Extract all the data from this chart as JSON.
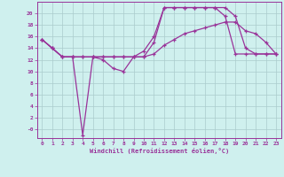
{
  "bg_color": "#cff0ee",
  "grid_color": "#aacccc",
  "line_color": "#993399",
  "marker_color": "#993399",
  "xlabel": "Windchill (Refroidissement éolien,°C)",
  "xlabel_color": "#993399",
  "tick_color": "#993399",
  "xlim": [
    -0.5,
    23.5
  ],
  "ylim": [
    -1.5,
    22
  ],
  "yticks": [
    0,
    2,
    4,
    6,
    8,
    10,
    12,
    14,
    16,
    18,
    20
  ],
  "ytick_labels": [
    "-0",
    "2",
    "4",
    "6",
    "8",
    "10",
    "12",
    "14",
    "16",
    "18",
    "20"
  ],
  "xticks": [
    0,
    1,
    2,
    3,
    4,
    5,
    6,
    7,
    8,
    9,
    10,
    11,
    12,
    13,
    14,
    15,
    16,
    17,
    18,
    19,
    20,
    21,
    22,
    23
  ],
  "series1_x": [
    0,
    1,
    2,
    3,
    4,
    5,
    6,
    7,
    8,
    9,
    10,
    11,
    12,
    13,
    14,
    15,
    16,
    17,
    18,
    19,
    20,
    21,
    22,
    23
  ],
  "series1_y": [
    15.5,
    14,
    12.5,
    12.5,
    -1.0,
    12.5,
    12,
    10.5,
    10,
    12.5,
    12.5,
    15,
    21.0,
    21.0,
    21.0,
    21.0,
    21.0,
    21.0,
    19.5,
    13,
    13,
    13,
    13,
    13
  ],
  "series2_x": [
    0,
    1,
    2,
    3,
    4,
    5,
    6,
    7,
    8,
    9,
    10,
    11,
    12,
    13,
    14,
    15,
    16,
    17,
    18,
    19,
    20,
    21,
    22,
    23
  ],
  "series2_y": [
    15.5,
    14,
    12.5,
    12.5,
    12.5,
    12.5,
    12.5,
    12.5,
    12.5,
    12.5,
    12.5,
    13.0,
    14.5,
    15.5,
    16.5,
    17.0,
    17.5,
    18.0,
    18.5,
    18.5,
    17.0,
    16.5,
    15.0,
    13.0
  ],
  "series3_x": [
    0,
    1,
    2,
    3,
    4,
    5,
    6,
    7,
    8,
    9,
    10,
    11,
    12,
    13,
    14,
    15,
    16,
    17,
    18,
    19,
    20,
    21,
    22,
    23
  ],
  "series3_y": [
    15.5,
    14,
    12.5,
    12.5,
    12.5,
    12.5,
    12.5,
    12.5,
    12.5,
    12.5,
    13.5,
    16.0,
    21.0,
    21.0,
    21.0,
    21.0,
    21.0,
    21.0,
    21.0,
    19.5,
    14.0,
    13.0,
    13.0,
    13.0
  ]
}
